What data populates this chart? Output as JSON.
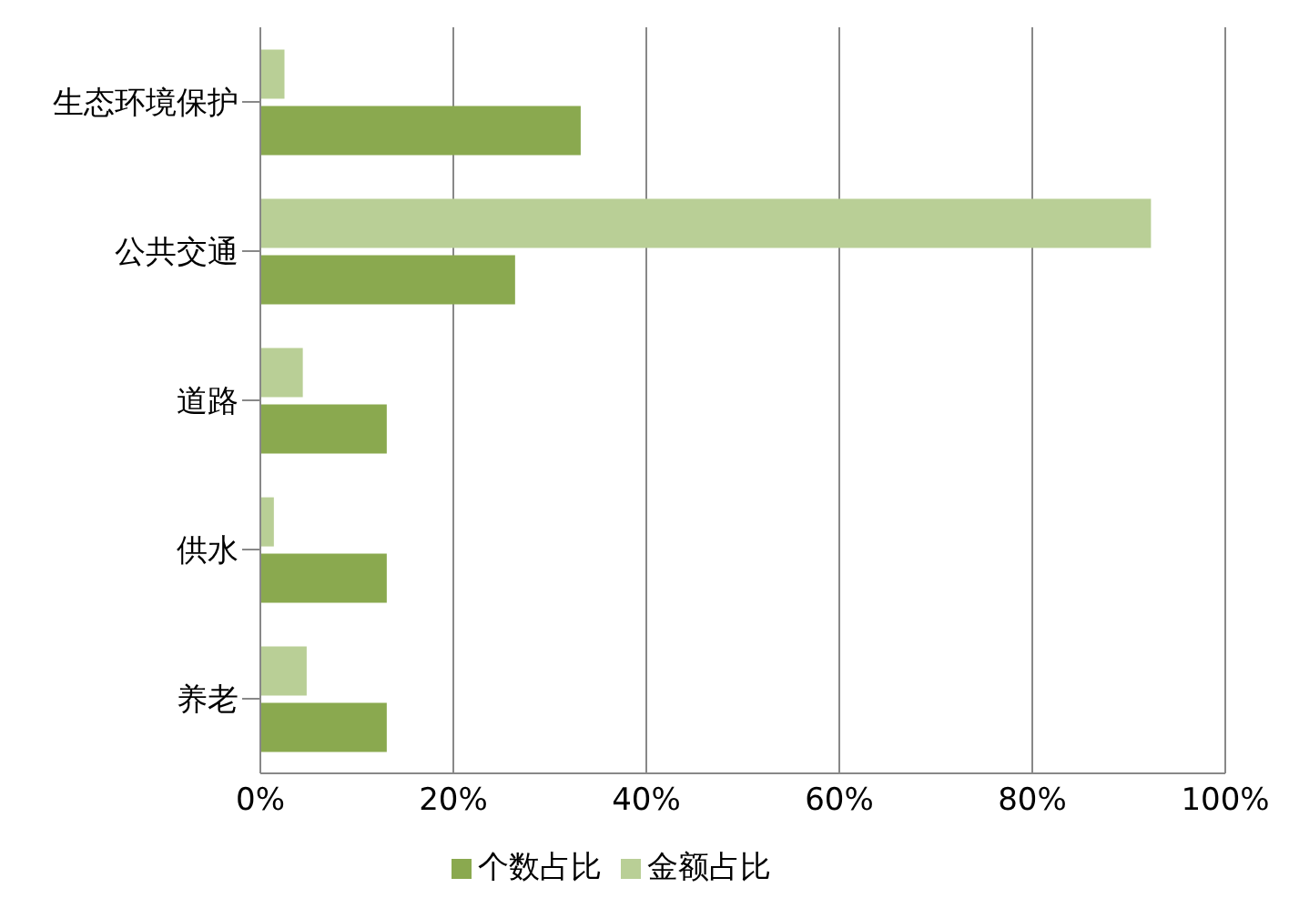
{
  "chart_data": {
    "type": "bar",
    "orientation": "horizontal",
    "categories": [
      "生态环境保护",
      "公共交通",
      "道路",
      "供水",
      "养老"
    ],
    "series": [
      {
        "name": "金额占比",
        "color": "#b9cf96",
        "values": [
          2.5,
          92.3,
          4.4,
          1.4,
          4.8
        ]
      },
      {
        "name": "个数占比",
        "color": "#8aa94f",
        "values": [
          33.2,
          26.4,
          13.1,
          13.1,
          13.1
        ]
      }
    ],
    "xlim": [
      0,
      100
    ],
    "xticks": [
      {
        "value": 0,
        "label": "0%"
      },
      {
        "value": 20,
        "label": "20%"
      },
      {
        "value": 40,
        "label": "40%"
      },
      {
        "value": 60,
        "label": "60%"
      },
      {
        "value": 80,
        "label": "80%"
      },
      {
        "value": 100,
        "label": "100%"
      }
    ],
    "grid": "x",
    "legend": "bottom"
  }
}
